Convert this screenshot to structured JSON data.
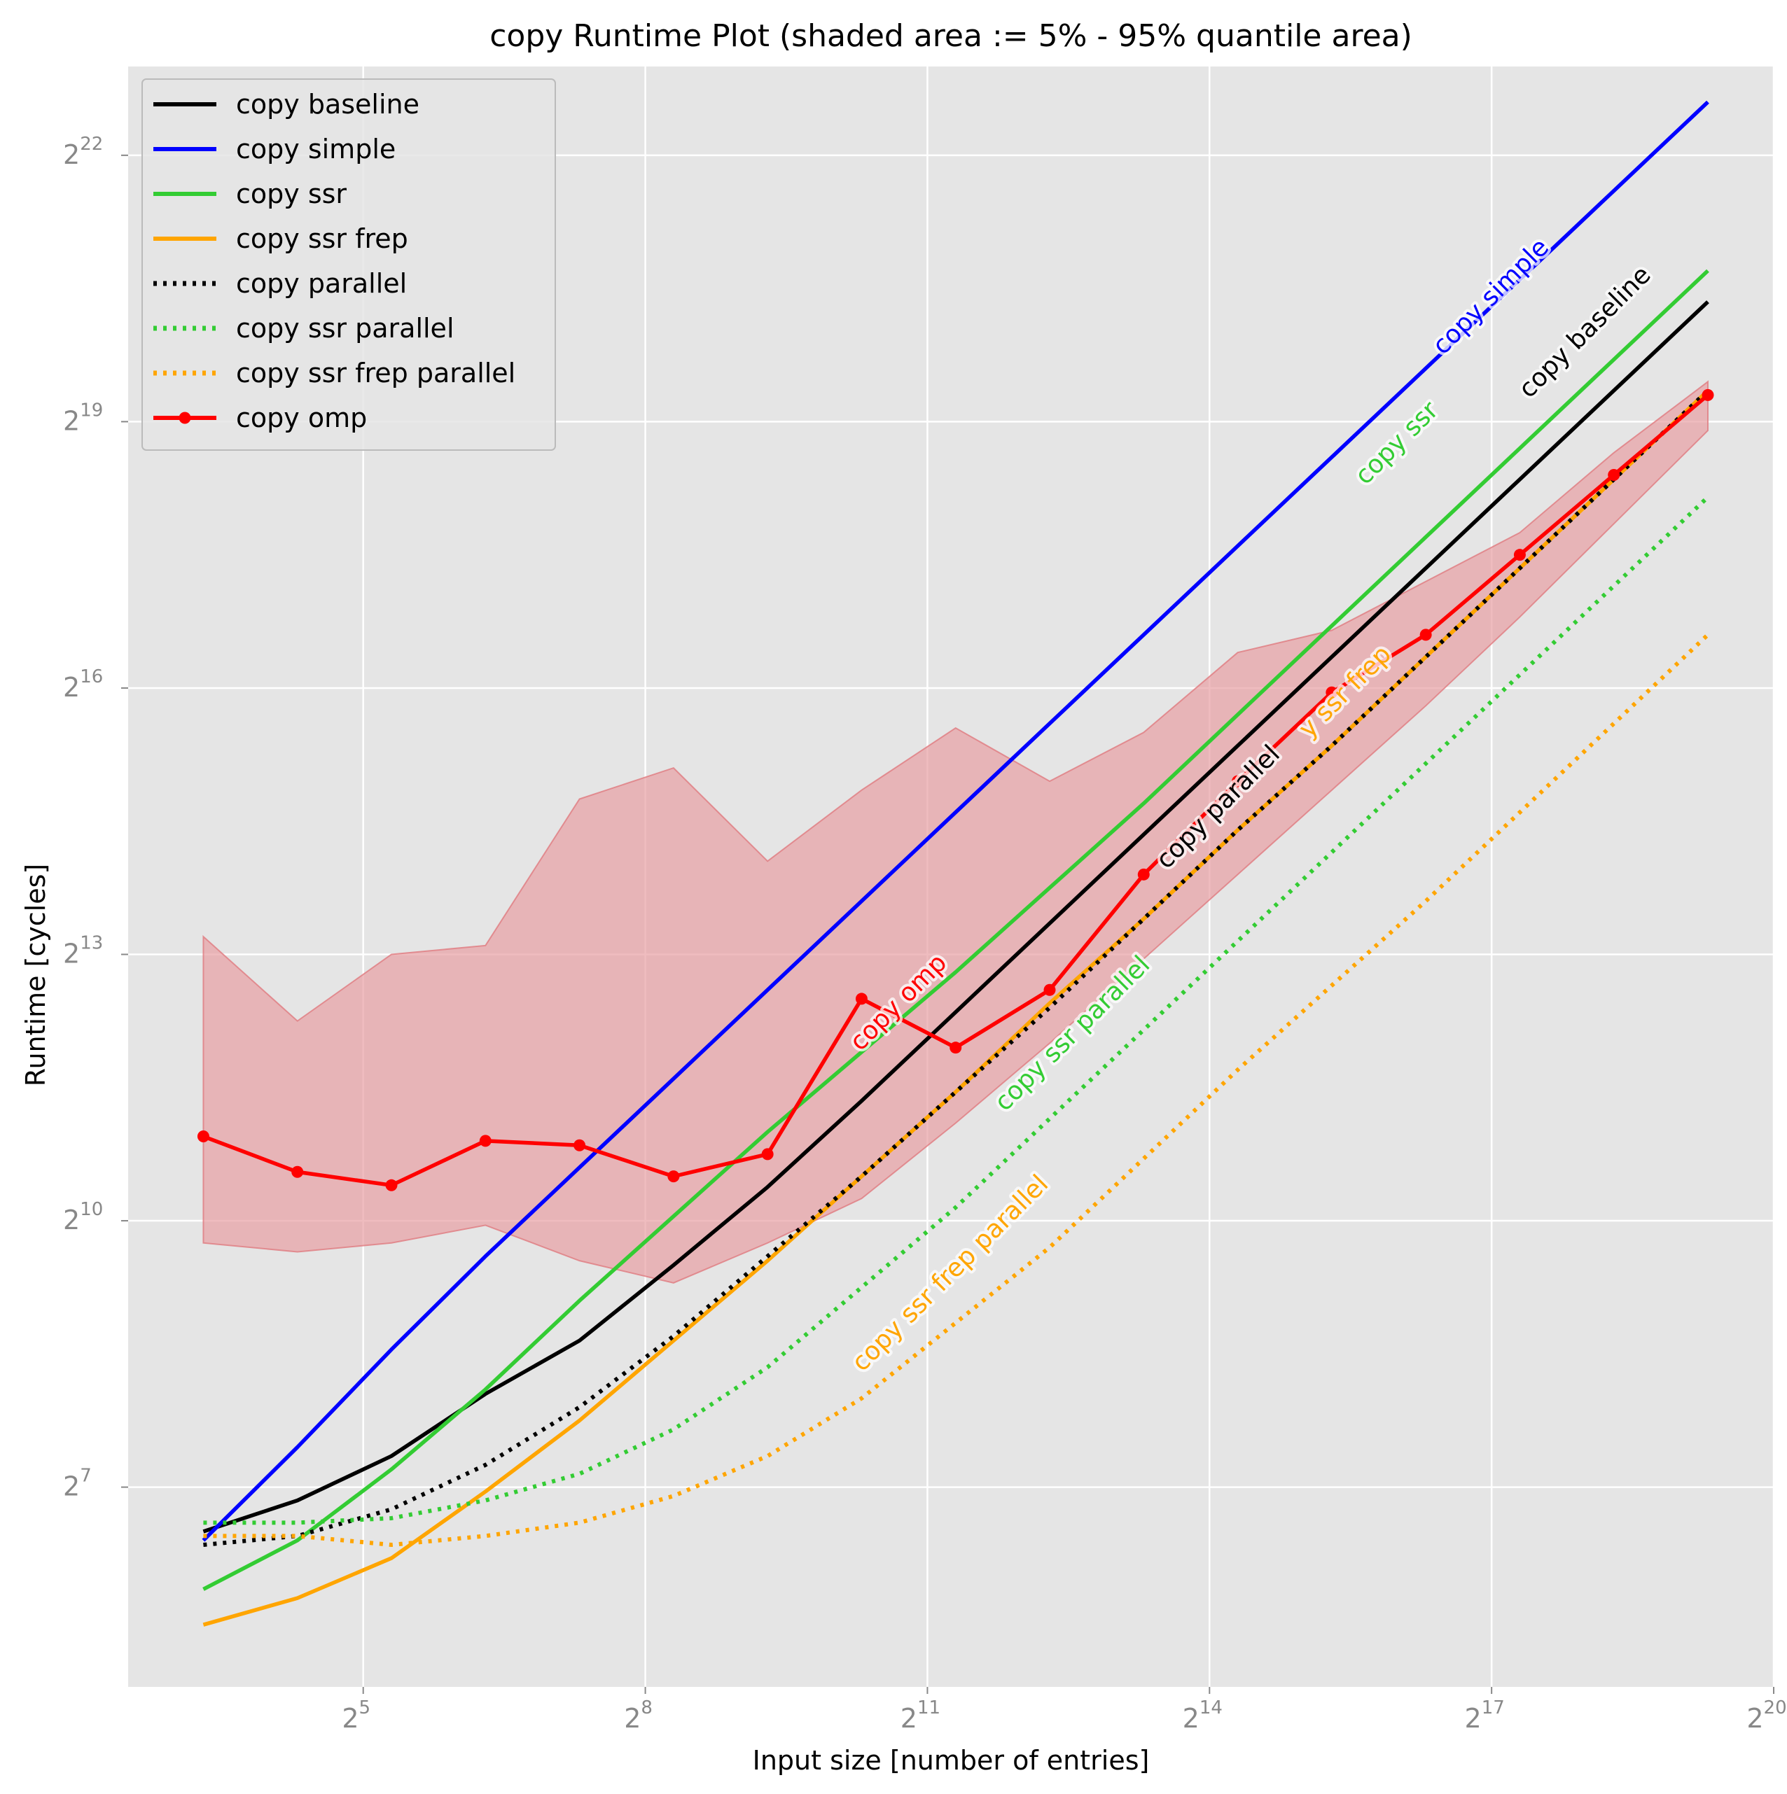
{
  "chart_data": {
    "type": "line",
    "title": "copy Runtime Plot (shaded area := 5% - 95% quantile area)",
    "xlabel": "Input size [number of entries]",
    "ylabel": "Runtime [cycles]",
    "xscale": "log2",
    "yscale": "log2",
    "xlim_log2": [
      2.5,
      20.0
    ],
    "ylim_log2": [
      4.75,
      23.0
    ],
    "grid": true,
    "legend_position": "top-left",
    "x_ticks": [
      {
        "base": "2",
        "exp": "5",
        "log2": 5
      },
      {
        "base": "2",
        "exp": "8",
        "log2": 8
      },
      {
        "base": "2",
        "exp": "11",
        "log2": 11
      },
      {
        "base": "2",
        "exp": "14",
        "log2": 14
      },
      {
        "base": "2",
        "exp": "17",
        "log2": 17
      },
      {
        "base": "2",
        "exp": "20",
        "log2": 20
      }
    ],
    "y_ticks": [
      {
        "base": "2",
        "exp": "7",
        "log2": 7
      },
      {
        "base": "2",
        "exp": "10",
        "log2": 10
      },
      {
        "base": "2",
        "exp": "13",
        "log2": 13
      },
      {
        "base": "2",
        "exp": "16",
        "log2": 16
      },
      {
        "base": "2",
        "exp": "19",
        "log2": 19
      },
      {
        "base": "2",
        "exp": "22",
        "log2": 22
      }
    ],
    "x_log2": [
      3.3,
      4.3,
      5.3,
      6.3,
      7.3,
      8.3,
      9.3,
      10.3,
      11.3,
      12.3,
      13.3,
      14.3,
      15.3,
      16.3,
      17.3,
      18.3,
      19.3
    ],
    "series": [
      {
        "name": "copy baseline",
        "color": "#000000",
        "style": "solid",
        "markers": false,
        "y_log2": [
          6.5,
          6.85,
          7.35,
          8.05,
          8.65,
          9.5,
          10.38,
          11.35,
          12.35,
          13.35,
          14.35,
          15.35,
          16.35,
          17.35,
          18.35,
          19.35,
          20.35
        ]
      },
      {
        "name": "copy simple",
        "color": "#0000ff",
        "style": "solid",
        "markers": false,
        "y_log2": [
          6.4,
          7.45,
          8.55,
          9.6,
          10.6,
          11.6,
          12.6,
          13.6,
          14.6,
          15.6,
          16.6,
          17.6,
          18.6,
          19.6,
          20.6,
          21.6,
          22.6
        ]
      },
      {
        "name": "copy ssr",
        "color": "#33cc33",
        "style": "solid",
        "markers": false,
        "y_log2": [
          5.85,
          6.4,
          7.2,
          8.1,
          9.1,
          10.05,
          11.0,
          11.9,
          12.8,
          13.75,
          14.7,
          15.7,
          16.7,
          17.7,
          18.7,
          19.7,
          20.7
        ]
      },
      {
        "name": "copy ssr frep",
        "color": "#ffa500",
        "style": "solid",
        "markers": false,
        "y_log2": [
          5.45,
          5.75,
          6.2,
          6.95,
          7.75,
          8.65,
          9.55,
          10.5,
          11.45,
          12.45,
          13.4,
          14.4,
          15.35,
          16.35,
          17.35,
          18.35,
          19.35
        ]
      },
      {
        "name": "copy parallel",
        "color": "#000000",
        "style": "dotted",
        "markers": false,
        "y_log2": [
          6.35,
          6.45,
          6.75,
          7.25,
          7.9,
          8.7,
          9.6,
          10.5,
          11.45,
          12.4,
          13.4,
          14.4,
          15.35,
          16.35,
          17.35,
          18.35,
          19.35
        ]
      },
      {
        "name": "copy ssr parallel",
        "color": "#33cc33",
        "style": "dotted",
        "markers": false,
        "y_log2": [
          6.6,
          6.6,
          6.65,
          6.85,
          7.15,
          7.65,
          8.35,
          9.25,
          10.15,
          11.15,
          12.15,
          13.15,
          14.15,
          15.15,
          16.15,
          17.15,
          18.15
        ]
      },
      {
        "name": "copy ssr frep parallel",
        "color": "#ffa500",
        "style": "dotted",
        "markers": false,
        "y_log2": [
          6.45,
          6.45,
          6.35,
          6.45,
          6.6,
          6.9,
          7.35,
          8.0,
          8.85,
          9.7,
          10.7,
          11.7,
          12.65,
          13.6,
          14.6,
          15.6,
          16.6
        ]
      },
      {
        "name": "copy omp",
        "color": "#ff0000",
        "style": "solid",
        "markers": true,
        "y_log2": [
          10.95,
          10.55,
          10.4,
          10.9,
          10.85,
          10.5,
          10.75,
          12.5,
          11.95,
          12.6,
          13.9,
          14.95,
          15.95,
          16.6,
          17.5,
          18.4,
          19.3
        ]
      }
    ],
    "omp_band": {
      "color": "#e8a0a4",
      "lower_log2": [
        9.75,
        9.65,
        9.75,
        9.95,
        9.55,
        9.3,
        9.75,
        10.25,
        11.1,
        12.0,
        12.95,
        13.9,
        14.85,
        15.8,
        16.8,
        17.85,
        18.9
      ],
      "upper_log2": [
        13.2,
        12.25,
        13.0,
        13.1,
        14.75,
        15.1,
        14.05,
        14.85,
        15.55,
        14.95,
        15.5,
        16.4,
        16.65,
        17.2,
        17.75,
        18.65,
        19.45
      ]
    },
    "inline_labels": [
      {
        "text": "copy simple",
        "color": "#0000ff",
        "x_log2": 17.0,
        "y_log2": 20.4
      },
      {
        "text": "copy baseline",
        "color": "#000000",
        "x_log2": 18.0,
        "y_log2": 20.0
      },
      {
        "text": "copy ssr",
        "color": "#33cc33",
        "x_log2": 16.0,
        "y_log2": 18.75
      },
      {
        "text": "y ssr frep",
        "color": "#ffa500",
        "x_log2": 15.45,
        "y_log2": 15.95
      },
      {
        "text": "copy parallel",
        "color": "#000000",
        "x_log2": 14.1,
        "y_log2": 14.65
      },
      {
        "text": "copy omp",
        "color": "#ff0000",
        "x_log2": 10.7,
        "y_log2": 12.45
      },
      {
        "text": "copy ssr parallel",
        "color": "#33cc33",
        "x_log2": 12.55,
        "y_log2": 12.1
      },
      {
        "text": "copy ssr frep parallel",
        "color": "#ffa500",
        "x_log2": 11.25,
        "y_log2": 9.4
      }
    ]
  }
}
